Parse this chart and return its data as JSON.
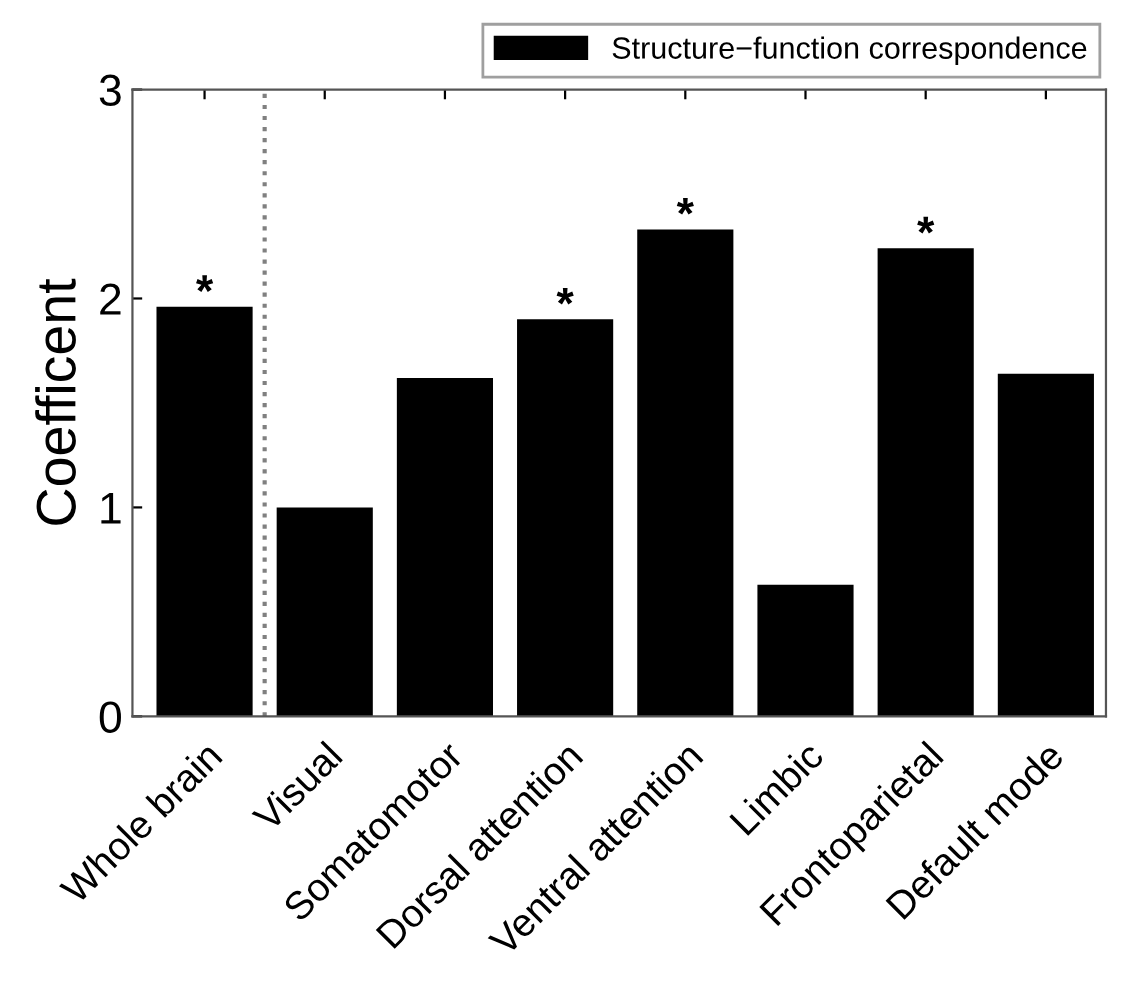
{
  "chart_data": {
    "type": "bar",
    "categories": [
      "Whole brain",
      "Visual",
      "Somatomotor",
      "Dorsal attention",
      "Ventral attention",
      "Limbic",
      "Frontoparietal",
      "Default mode"
    ],
    "series": [
      {
        "name": "Structure−function correspondence",
        "color": "#000000",
        "values": [
          1.96,
          1.0,
          1.62,
          1.9,
          2.33,
          0.63,
          2.24,
          1.64
        ]
      }
    ],
    "ylabel": "Coefficent",
    "ylim": [
      0,
      3
    ],
    "yticks": [
      0,
      1,
      2,
      3
    ],
    "annotations": [
      {
        "text": "*",
        "x": "Whole brain",
        "y": 1.96
      },
      {
        "text": "*",
        "x": "Dorsal attention",
        "y": 1.9
      },
      {
        "text": "*",
        "x": "Ventral attention",
        "y": 2.33
      },
      {
        "text": "*",
        "x": "Frontoparietal",
        "y": 2.24
      }
    ],
    "legend": "top right",
    "grid": false
  }
}
